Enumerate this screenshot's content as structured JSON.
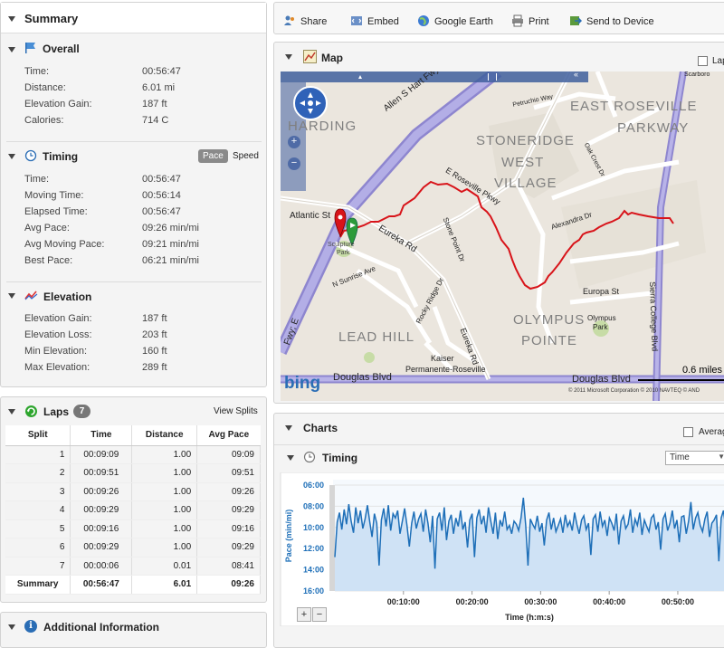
{
  "summary": {
    "title": "Summary",
    "overall": {
      "title": "Overall",
      "rows": [
        {
          "label": "Time:",
          "value": "00:56:47"
        },
        {
          "label": "Distance:",
          "value": "6.01 mi"
        },
        {
          "label": "Elevation Gain:",
          "value": "187 ft"
        },
        {
          "label": "Calories:",
          "value": "714 C"
        }
      ]
    },
    "timing": {
      "title": "Timing",
      "toggle_pace": "Pace",
      "toggle_speed": "Speed",
      "rows": [
        {
          "label": "Time:",
          "value": "00:56:47"
        },
        {
          "label": "Moving Time:",
          "value": "00:56:14"
        },
        {
          "label": "Elapsed Time:",
          "value": "00:56:47"
        },
        {
          "label": "Avg Pace:",
          "value": "09:26 min/mi"
        },
        {
          "label": "Avg Moving Pace:",
          "value": "09:21 min/mi"
        },
        {
          "label": "Best Pace:",
          "value": "06:21 min/mi"
        }
      ]
    },
    "elevation": {
      "title": "Elevation",
      "rows": [
        {
          "label": "Elevation Gain:",
          "value": "187 ft"
        },
        {
          "label": "Elevation Loss:",
          "value": "203 ft"
        },
        {
          "label": "Min Elevation:",
          "value": "160 ft"
        },
        {
          "label": "Max Elevation:",
          "value": "289 ft"
        }
      ]
    }
  },
  "laps": {
    "title": "Laps",
    "count": "7",
    "view_splits": "View Splits",
    "headers": [
      "Split",
      "Time",
      "Distance",
      "Avg Pace"
    ],
    "rows": [
      [
        "1",
        "00:09:09",
        "1.00",
        "09:09"
      ],
      [
        "2",
        "00:09:51",
        "1.00",
        "09:51"
      ],
      [
        "3",
        "00:09:26",
        "1.00",
        "09:26"
      ],
      [
        "4",
        "00:09:29",
        "1.00",
        "09:29"
      ],
      [
        "5",
        "00:09:16",
        "1.00",
        "09:16"
      ],
      [
        "6",
        "00:09:29",
        "1.00",
        "09:29"
      ],
      [
        "7",
        "00:00:06",
        "0.01",
        "08:41"
      ]
    ],
    "summary_row": [
      "Summary",
      "00:56:47",
      "6.01",
      "09:26"
    ]
  },
  "additional": {
    "title": "Additional Information"
  },
  "toolbar": {
    "share": "Share",
    "embed": "Embed",
    "google_earth": "Google Earth",
    "print": "Print",
    "send": "Send to Device"
  },
  "map": {
    "title": "Map",
    "checkbox_label": "Lap",
    "scale": "0.6 miles",
    "logo": "bing",
    "copyright": "© 2011 Microsoft Corporation  © 2010 NAVTEQ  © AND",
    "labels": {
      "harding": "HARDING",
      "east_roseville": "EAST ROSEVILLE",
      "parkway": "PARKWAY",
      "stoneridge": "STONERIDGE",
      "west": "WEST",
      "village": "VILLAGE",
      "olympus": "OLYMPUS",
      "pointe": "POINTE",
      "lead_hill": "LEAD HILL",
      "hart_fwy": "Allen S Hart Fwy; E",
      "atlantic": "Atlantic St",
      "eureka": "Eureka Rd",
      "eureka2": "Eureka Rd",
      "roseville_pkwy": "E Roseville Pkwy",
      "stone_point": "Stone Point Dr",
      "sunrise": "N Sunrise Ave",
      "rocky_ridge": "Rocky Ridge Dr",
      "kaiser": "Kaiser",
      "permanente": "Permanente-Roseville",
      "douglas": "Douglas Blvd",
      "douglas2": "Douglas Blvd",
      "alexandra": "Alexandra Dr",
      "europa": "Europa St",
      "olympus_park": "Olympus",
      "olympus_park2": "Park",
      "sierra": "Sierra College Blvd",
      "petruchio": "Petruchio Way",
      "oak_crest": "Oak Crest Dr",
      "scarboro": "Scarboro",
      "sculpture": "Sculpture",
      "park": "Park",
      "fwy_e": "Fwy; E"
    }
  },
  "charts": {
    "title": "Charts",
    "average_label": "Average",
    "timing_title": "Timing",
    "select_value": "Time",
    "zoom_in": "+",
    "zoom_out": "−"
  },
  "colors": {
    "accent": "#1e6fb8",
    "fill": "#cfe2f5",
    "route": "#d8141a"
  },
  "chart_data": {
    "type": "line",
    "ylabel": "Pace (min/mi)",
    "xlabel": "Time (h:m:s)",
    "y_reversed": true,
    "ylim": [
      6,
      16
    ],
    "xlim": [
      0,
      3420
    ],
    "y_ticks": [
      "06:00",
      "08:00",
      "10:00",
      "12:00",
      "14:00",
      "16:00"
    ],
    "x_ticks": [
      "00:10:00",
      "00:20:00",
      "00:30:00",
      "00:40:00",
      "00:50:00"
    ],
    "x_tick_values": [
      600,
      1200,
      1800,
      2400,
      3000
    ],
    "series": [
      {
        "values": [
          12.8,
          9.5,
          8.6,
          10.2,
          8.3,
          9.7,
          7.8,
          9.4,
          10.5,
          8.1,
          9.6,
          8.4,
          10.1,
          9.2,
          7.9,
          9.5,
          10.9,
          8.7,
          9.6,
          13.6,
          9.3,
          8.2,
          9.9,
          7.9,
          10.3,
          8.7,
          9.1,
          8.4,
          10.6,
          9.4,
          8.2,
          9.8,
          11.8,
          9.6,
          8.5,
          10.1,
          9.2,
          8.7,
          10.4,
          8.3,
          9.6,
          11.4,
          8.9,
          13.9,
          9.2,
          8.6,
          10.3,
          8.1,
          11.2,
          9.4,
          8.8,
          10.6,
          9.1,
          9.9,
          8.4,
          10.2,
          9.5,
          11.9,
          9.3,
          8.7,
          12.8,
          9.1,
          8.3,
          9.7,
          8.9,
          10.5,
          8.1,
          9.4,
          10.6,
          8.6,
          11.1,
          9.3,
          9.9,
          8.5,
          10.2,
          9.8,
          10.6,
          9.4,
          9.7,
          10.3,
          9.1,
          7.2,
          9.8,
          13.6,
          9.2,
          9.7,
          10.1,
          8.9,
          10.4,
          9.6,
          11.7,
          9.3,
          8.6,
          10.2,
          9.1,
          10.4,
          9.8,
          9.2,
          10.5,
          8.8,
          9.9,
          9.4,
          10.3,
          8.6,
          9.7,
          10.6,
          9.3,
          8.9,
          10.2,
          9.6,
          12.6,
          9.2,
          8.8,
          10.4,
          8.5,
          9.9,
          9.3,
          10.8,
          9.1,
          9.6,
          10.3,
          8.7,
          11.6,
          9.4,
          8.9,
          10.1,
          9.7,
          8.3,
          10.5,
          9.2,
          9.8,
          8.6,
          10.7,
          9.3,
          9.9,
          10.4,
          9.1,
          8.8,
          10.2,
          9.5,
          12.1,
          9.2,
          8.7,
          10.3,
          9.6,
          8.4,
          10.1,
          9.3,
          11.4,
          9.0,
          8.9,
          10.6,
          9.4,
          7.6,
          10.2,
          9.1,
          8.6,
          9.8,
          10.4,
          9.2,
          8.5,
          10.9,
          9.6,
          9.3,
          8.8,
          13.2,
          9.1,
          8.4,
          10.1
        ]
      }
    ]
  }
}
